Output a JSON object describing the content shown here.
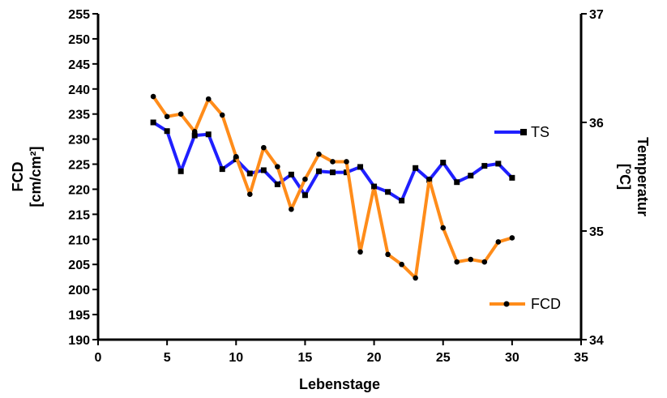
{
  "chart_data": {
    "type": "line",
    "title": "",
    "xlabel": "Lebenstage",
    "ylabel_left_line1": "FCD",
    "ylabel_left_line2": "[cm/cm²]",
    "ylabel_right_line1": "Temperatur",
    "ylabel_right_line2": "[°C]",
    "xlim": [
      0,
      35
    ],
    "ylim_left": [
      190,
      255
    ],
    "ylim_right": [
      34,
      37
    ],
    "x_ticks": [
      0,
      5,
      10,
      15,
      20,
      25,
      30,
      35
    ],
    "y_left_ticks": [
      190,
      195,
      200,
      205,
      210,
      215,
      220,
      225,
      230,
      235,
      240,
      245,
      250,
      255
    ],
    "y_right_ticks": [
      34,
      35,
      36,
      37
    ],
    "grid": false,
    "series": [
      {
        "name": "TS",
        "axis": "right",
        "color": "#1f1fff",
        "marker": "square",
        "x": [
          4,
          5,
          6,
          7,
          8,
          9,
          10,
          11,
          12,
          13,
          14,
          15,
          16,
          17,
          18,
          19,
          20,
          21,
          22,
          23,
          24,
          25,
          26,
          27,
          28,
          29,
          30
        ],
        "values": [
          36.0,
          35.92,
          35.55,
          35.88,
          35.89,
          35.57,
          35.66,
          35.53,
          35.56,
          35.43,
          35.52,
          35.33,
          35.55,
          35.54,
          35.54,
          35.59,
          35.41,
          35.36,
          35.28,
          35.58,
          35.47,
          35.63,
          35.45,
          35.51,
          35.6,
          35.62,
          35.49
        ]
      },
      {
        "name": "FCD",
        "axis": "left",
        "color": "#ff8c1a",
        "marker": "circle",
        "x": [
          4,
          5,
          6,
          7,
          8,
          9,
          10,
          11,
          12,
          13,
          14,
          15,
          16,
          17,
          18,
          19,
          20,
          21,
          22,
          23,
          24,
          25,
          26,
          27,
          28,
          29,
          30
        ],
        "values": [
          238.5,
          234.5,
          235.0,
          231.5,
          238.0,
          234.8,
          226.5,
          219.0,
          228.3,
          224.5,
          216.0,
          222.0,
          227.0,
          225.5,
          225.5,
          207.5,
          220.5,
          207.0,
          205.0,
          202.3,
          222.0,
          212.3,
          205.5,
          206.0,
          205.5,
          209.5,
          210.3
        ]
      }
    ],
    "legend": [
      {
        "label": "TS",
        "placement": "middle-right"
      },
      {
        "label": "FCD",
        "placement": "bottom-right"
      }
    ]
  }
}
